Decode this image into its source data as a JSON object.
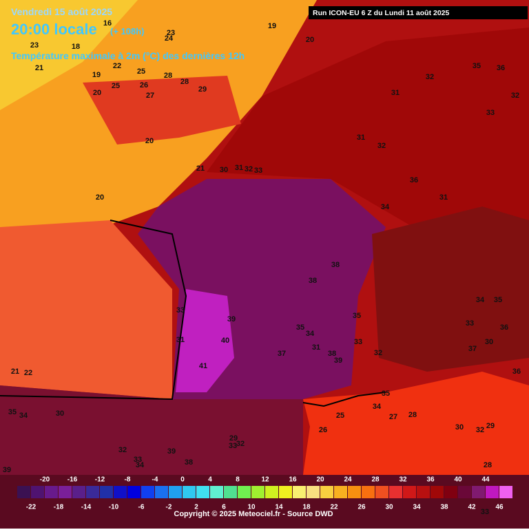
{
  "header": {
    "date": "Vendredi 15 août 2025",
    "time": "20:00 locale",
    "lead": "(+ 108h)",
    "parameter": "Température maximale à 2m (°C) des dernières 12h",
    "run": "Run ICON-EU 6 Z du Lundi 11 août 2025"
  },
  "map": {
    "labels": [
      16,
      19,
      20,
      23,
      18,
      24,
      23,
      21,
      22,
      19,
      25,
      28,
      28,
      26,
      25,
      29,
      27,
      20,
      20,
      21,
      30,
      31,
      32,
      33,
      20,
      32,
      35,
      36,
      31,
      32,
      33,
      31,
      32,
      36,
      31,
      34,
      38,
      38,
      39,
      40,
      41,
      35,
      34,
      31,
      38,
      39,
      35,
      33,
      32,
      37,
      33,
      31,
      21,
      22,
      35,
      34,
      27,
      28,
      25,
      26,
      34,
      35,
      36,
      33,
      30,
      37,
      36,
      30,
      32,
      29,
      35,
      34,
      30,
      39,
      38,
      32,
      33,
      34,
      33,
      32,
      29,
      39,
      28,
      33
    ]
  },
  "legend": {
    "colors": [
      "#3b1152",
      "#4f1370",
      "#681a8c",
      "#7a1f99",
      "#5a1f8a",
      "#3a2a99",
      "#2030a8",
      "#1010c8",
      "#0000e0",
      "#1040f0",
      "#1a70f0",
      "#20a0f0",
      "#30c8f0",
      "#40e0f0",
      "#60f0d0",
      "#50e090",
      "#70f050",
      "#a0f030",
      "#d0f020",
      "#f0f020",
      "#f8f070",
      "#f8e080",
      "#f8d040",
      "#f8b020",
      "#f89010",
      "#f87010",
      "#f05020",
      "#e83030",
      "#d01818",
      "#b81010",
      "#a00808",
      "#800010",
      "#6a0838",
      "#801a70",
      "#c018c0",
      "#f060f0"
    ],
    "range": [
      -24,
      48
    ],
    "top_labels": [
      -20,
      -16,
      -12,
      -8,
      -4,
      0,
      4,
      8,
      12,
      16,
      20,
      24,
      28,
      32,
      36,
      40,
      44
    ],
    "bottom_labels": [
      -22,
      -18,
      -14,
      -10,
      -6,
      -2,
      2,
      6,
      10,
      14,
      18,
      22,
      26,
      30,
      34,
      38,
      42,
      46
    ]
  },
  "footer": {
    "copyright": "Copyright © 2025 Meteociel.fr - Source DWD"
  }
}
